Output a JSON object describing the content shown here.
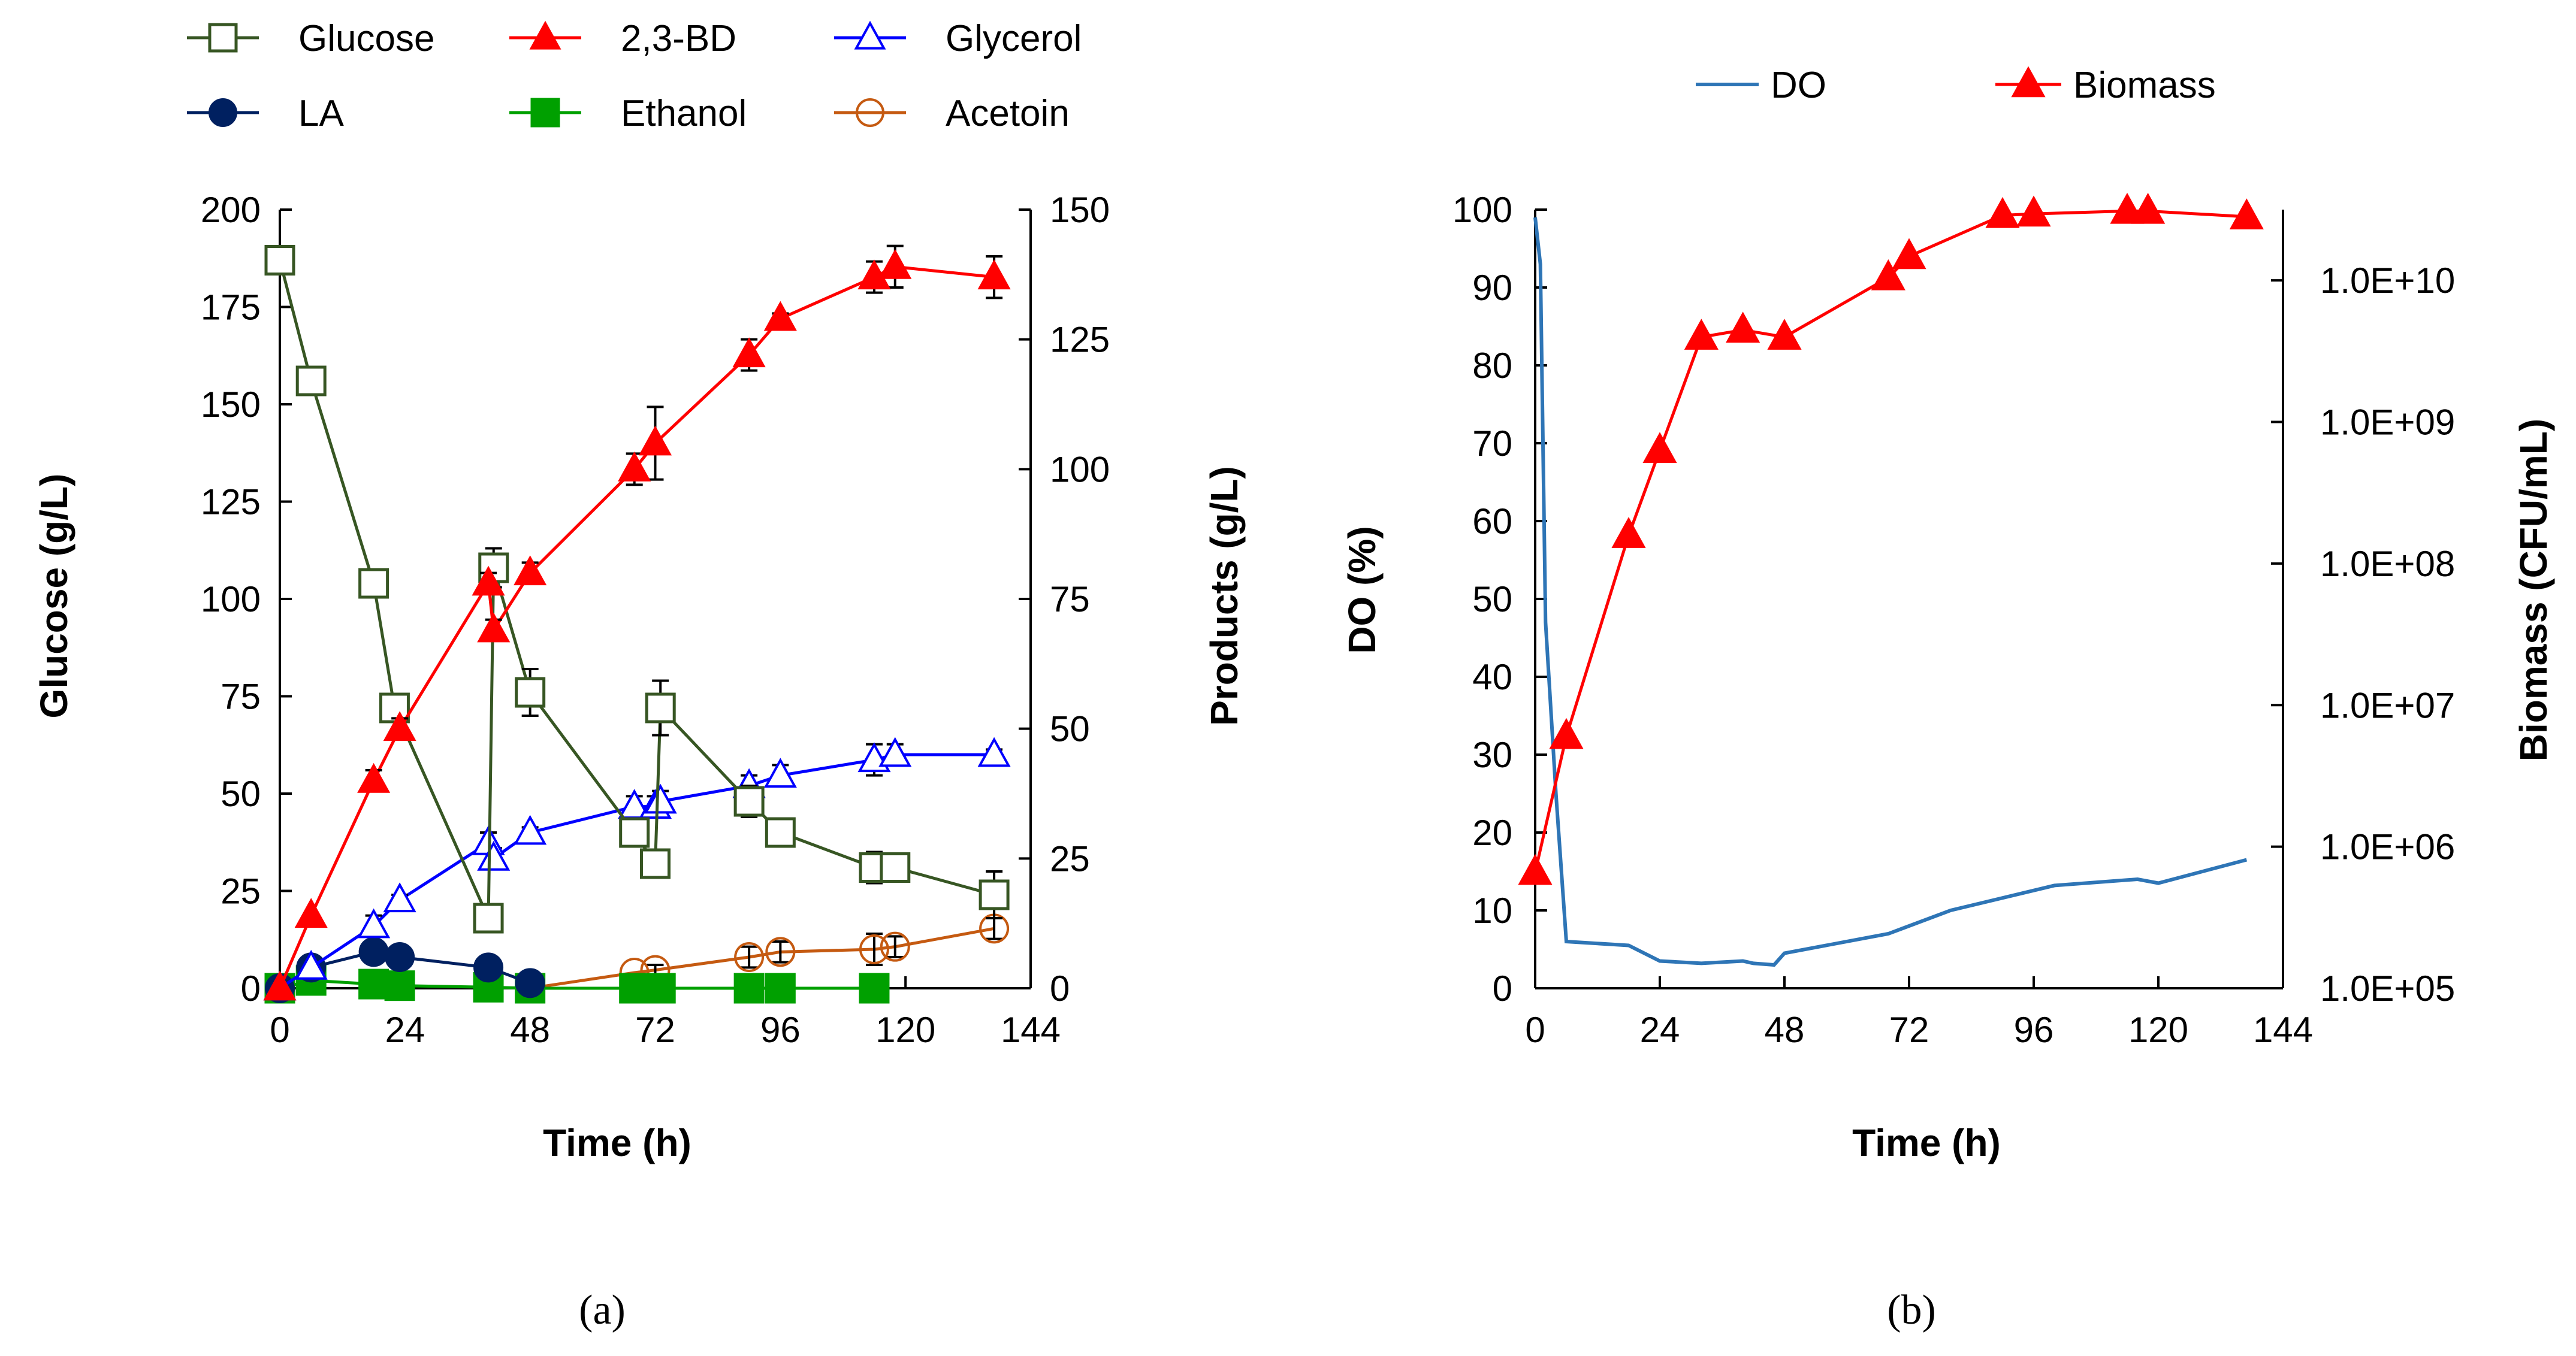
{
  "chart_data": [
    {
      "type": "line",
      "panel_label": "(a)",
      "xlabel": "Time (h)",
      "ylabel": "Glucose (g/L)",
      "y2label": "Products (g/L)",
      "xlim": [
        0,
        144
      ],
      "xticks": [
        0,
        24,
        48,
        72,
        96,
        120,
        144
      ],
      "ylim": [
        0,
        200
      ],
      "yticks": [
        0,
        25,
        50,
        75,
        100,
        125,
        150,
        175,
        200
      ],
      "y2lim": [
        0,
        150
      ],
      "y2ticks": [
        0,
        25,
        50,
        75,
        100,
        125,
        150
      ],
      "series": [
        {
          "name": "Glucose",
          "axis": "left",
          "color": "#375623",
          "marker": "open-square",
          "points": [
            [
              0,
              187,
              0
            ],
            [
              6,
              156,
              0
            ],
            [
              18,
              104,
              3
            ],
            [
              22,
              72,
              3
            ],
            [
              40,
              18,
              3
            ],
            [
              41,
              108,
              5
            ],
            [
              48,
              76,
              6
            ],
            [
              68,
              40,
              3
            ],
            [
              72,
              32,
              3
            ],
            [
              73,
              72,
              7
            ],
            [
              90,
              48,
              4
            ],
            [
              96,
              40,
              3
            ],
            [
              114,
              31,
              4
            ],
            [
              118,
              31,
              3
            ],
            [
              137,
              24,
              6
            ]
          ]
        },
        {
          "name": "2,3-BD",
          "axis": "right",
          "color": "#ff0000",
          "marker": "filled-triangle",
          "points": [
            [
              0,
              0,
              0
            ],
            [
              6,
              14,
              0
            ],
            [
              18,
              40,
              2
            ],
            [
              23,
              50,
              2
            ],
            [
              40,
              78,
              2
            ],
            [
              41,
              69,
              2
            ],
            [
              48,
              80,
              2
            ],
            [
              68,
              100,
              3
            ],
            [
              72,
              105,
              7
            ],
            [
              90,
              122,
              3
            ],
            [
              96,
              129,
              1
            ],
            [
              114,
              137,
              3
            ],
            [
              118,
              139,
              4
            ],
            [
              137,
              137,
              4
            ]
          ]
        },
        {
          "name": "Glycerol",
          "axis": "right",
          "color": "#0000ff",
          "marker": "open-triangle",
          "points": [
            [
              0,
              0,
              0
            ],
            [
              6,
              4,
              0
            ],
            [
              18,
              12,
              2
            ],
            [
              23,
              17,
              1
            ],
            [
              40,
              28,
              2
            ],
            [
              41,
              25,
              2
            ],
            [
              48,
              30,
              1
            ],
            [
              68,
              35,
              2
            ],
            [
              72,
              35,
              2
            ],
            [
              73,
              36,
              2
            ],
            [
              90,
              39,
              2
            ],
            [
              96,
              41,
              2
            ],
            [
              114,
              44,
              3
            ],
            [
              118,
              45,
              2
            ],
            [
              137,
              45,
              1
            ]
          ]
        },
        {
          "name": "LA",
          "axis": "right",
          "color": "#002060",
          "marker": "filled-circle",
          "points": [
            [
              0,
              0,
              0
            ],
            [
              6,
              4,
              0
            ],
            [
              18,
              7,
              0
            ],
            [
              23,
              6,
              0
            ],
            [
              40,
              4,
              0
            ],
            [
              48,
              1,
              0
            ]
          ]
        },
        {
          "name": "Ethanol",
          "axis": "right",
          "color": "#00a000",
          "marker": "filled-square",
          "points": [
            [
              0,
              0,
              0
            ],
            [
              6,
              1.5,
              0
            ],
            [
              18,
              0.8,
              0
            ],
            [
              23,
              0.5,
              0
            ],
            [
              40,
              0.2,
              0
            ],
            [
              48,
              0,
              0
            ],
            [
              68,
              0,
              0
            ],
            [
              72,
              0,
              0
            ],
            [
              73,
              0,
              0
            ],
            [
              90,
              0,
              0
            ],
            [
              96,
              0,
              0
            ],
            [
              114,
              0,
              0
            ]
          ]
        },
        {
          "name": "Acetoin",
          "axis": "right",
          "color": "#c55a11",
          "marker": "open-circle",
          "points": [
            [
              48,
              0,
              0
            ],
            [
              68,
              3,
              0
            ],
            [
              72,
              3.5,
              1
            ],
            [
              90,
              6,
              2
            ],
            [
              96,
              7,
              2
            ],
            [
              114,
              7.5,
              3
            ],
            [
              118,
              8,
              2
            ],
            [
              137,
              11.5,
              2
            ]
          ]
        }
      ],
      "legend": [
        "Glucose",
        "2,3-BD",
        "Glycerol",
        "LA",
        "Ethanol",
        "Acetoin"
      ]
    },
    {
      "type": "line",
      "panel_label": "(b)",
      "xlabel": "Time (h)",
      "ylabel": "DO (%)",
      "y2label": "Biomass (CFU/mL)",
      "xlim": [
        0,
        144
      ],
      "xticks": [
        0,
        24,
        48,
        72,
        96,
        120,
        144
      ],
      "ylim": [
        0,
        100
      ],
      "yticks": [
        0,
        10,
        20,
        30,
        40,
        50,
        60,
        70,
        80,
        90,
        100
      ],
      "y2lim_log10": [
        5,
        10.5
      ],
      "y2ticks": [
        "1.0E+05",
        "1.0E+06",
        "1.0E+07",
        "1.0E+08",
        "1.0E+09",
        "1.0E+10"
      ],
      "series": [
        {
          "name": "DO",
          "axis": "left",
          "color": "#2e75b6",
          "marker": "none",
          "points": [
            [
              0,
              99
            ],
            [
              1,
              93
            ],
            [
              2,
              47
            ],
            [
              4,
              25
            ],
            [
              6,
              6
            ],
            [
              18,
              5.5
            ],
            [
              24,
              3.5
            ],
            [
              32,
              3.2
            ],
            [
              40,
              3.5
            ],
            [
              42,
              3.2
            ],
            [
              46,
              3
            ],
            [
              48,
              4.5
            ],
            [
              68,
              7
            ],
            [
              80,
              10
            ],
            [
              100,
              13.2
            ],
            [
              116,
              14
            ],
            [
              120,
              13.5
            ],
            [
              137,
              16.5
            ]
          ]
        },
        {
          "name": "Biomass",
          "axis": "right",
          "color": "#ff0000",
          "marker": "filled-triangle",
          "points_log10": [
            [
              0,
              5.82
            ],
            [
              6,
              6.78
            ],
            [
              18,
              8.2
            ],
            [
              24,
              8.8
            ],
            [
              32,
              9.6
            ],
            [
              40,
              9.65
            ],
            [
              48,
              9.6
            ],
            [
              68,
              10.02
            ],
            [
              72,
              10.17
            ],
            [
              90,
              10.46
            ],
            [
              96,
              10.47
            ],
            [
              114,
              10.49
            ],
            [
              118,
              10.49
            ],
            [
              137,
              10.45
            ]
          ]
        }
      ],
      "legend": [
        "DO",
        "Biomass"
      ]
    }
  ]
}
